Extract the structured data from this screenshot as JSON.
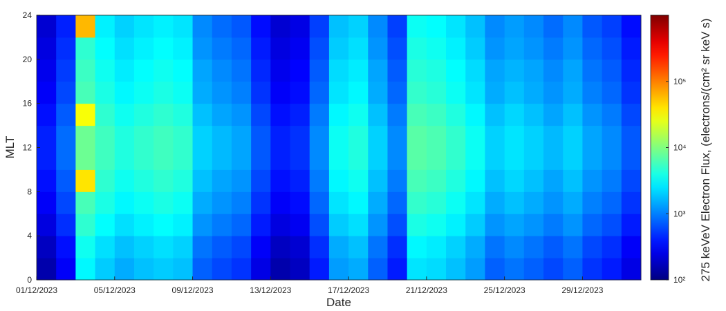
{
  "chart_data": {
    "type": "heatmap",
    "x": [
      "01/12/2023",
      "02/12/2023",
      "03/12/2023",
      "04/12/2023",
      "05/12/2023",
      "06/12/2023",
      "07/12/2023",
      "08/12/2023",
      "09/12/2023",
      "10/12/2023",
      "11/12/2023",
      "12/12/2023",
      "13/12/2023",
      "14/12/2023",
      "15/12/2023",
      "16/12/2023",
      "17/12/2023",
      "18/12/2023",
      "19/12/2023",
      "20/12/2023",
      "21/12/2023",
      "22/12/2023",
      "23/12/2023",
      "24/12/2023",
      "25/12/2023",
      "26/12/2023",
      "27/12/2023",
      "28/12/2023",
      "29/12/2023",
      "30/12/2023",
      "31/12/2023"
    ],
    "y_edges": [
      0,
      2,
      4,
      6,
      8,
      10,
      12,
      14,
      16,
      18,
      20,
      22,
      24
    ],
    "values": [
      [
        150,
        300,
        3000,
        2000,
        1500,
        1800,
        2000,
        1800,
        750,
        600,
        500,
        250,
        150,
        180,
        400,
        1300,
        1500,
        750,
        400,
        2500,
        2300,
        1800,
        1300,
        750,
        900,
        750,
        600,
        750,
        500,
        400,
        250
      ],
      [
        180,
        360,
        3600,
        2400,
        1800,
        2100,
        2400,
        2100,
        900,
        720,
        600,
        300,
        180,
        210,
        480,
        1500,
        1800,
        900,
        480,
        3000,
        2700,
        2100,
        1500,
        900,
        1100,
        900,
        720,
        900,
        600,
        480,
        300
      ],
      [
        240,
        480,
        4800,
        3200,
        2400,
        2800,
        3200,
        2800,
        1200,
        960,
        800,
        400,
        240,
        280,
        640,
        2000,
        2400,
        1200,
        640,
        4000,
        3600,
        2800,
        2000,
        1200,
        1400,
        1200,
        960,
        1200,
        800,
        640,
        400
      ],
      [
        300,
        600,
        6000,
        4000,
        3000,
        3500,
        4000,
        3500,
        1500,
        1200,
        1000,
        500,
        300,
        350,
        800,
        2500,
        3000,
        1500,
        800,
        5000,
        4500,
        3500,
        2500,
        1500,
        1800,
        1500,
        1200,
        1500,
        1000,
        800,
        500
      ],
      [
        360,
        720,
        40000,
        4800,
        3600,
        4200,
        4800,
        4200,
        1800,
        1400,
        1200,
        600,
        360,
        420,
        960,
        3000,
        3600,
        1800,
        960,
        6000,
        5400,
        4200,
        3000,
        1800,
        2200,
        1800,
        1400,
        1800,
        1200,
        960,
        600
      ],
      [
        420,
        840,
        8400,
        5600,
        4200,
        4900,
        5600,
        4900,
        2100,
        1700,
        1400,
        700,
        420,
        490,
        1100,
        3500,
        4200,
        2100,
        1100,
        7000,
        6300,
        4900,
        3500,
        2100,
        2500,
        2100,
        1700,
        2100,
        1400,
        1100,
        700
      ],
      [
        420,
        840,
        8400,
        5600,
        4200,
        4900,
        5600,
        4900,
        2100,
        1700,
        1400,
        700,
        420,
        490,
        1100,
        3500,
        4200,
        2100,
        1100,
        7000,
        6300,
        4900,
        3500,
        2100,
        2500,
        2100,
        1700,
        2100,
        1400,
        1100,
        700
      ],
      [
        360,
        720,
        30000,
        4800,
        3600,
        4200,
        4800,
        4200,
        1800,
        1400,
        1200,
        600,
        360,
        420,
        960,
        3000,
        3600,
        1800,
        960,
        6000,
        5400,
        4200,
        3000,
        1800,
        2200,
        1800,
        1400,
        1800,
        1200,
        960,
        600
      ],
      [
        300,
        600,
        6000,
        4000,
        3000,
        3500,
        4000,
        3500,
        1500,
        1200,
        1000,
        500,
        300,
        350,
        800,
        2500,
        3000,
        1500,
        800,
        5000,
        4500,
        3500,
        2500,
        1500,
        1800,
        1500,
        1200,
        1500,
        1000,
        800,
        500
      ],
      [
        270,
        540,
        5400,
        3600,
        2700,
        3200,
        3600,
        3200,
        1400,
        1100,
        900,
        450,
        270,
        320,
        720,
        2300,
        2700,
        1400,
        720,
        4500,
        4100,
        3200,
        2300,
        1400,
        1600,
        1400,
        1100,
        1400,
        900,
        720,
        450
      ],
      [
        240,
        480,
        4800,
        3200,
        2400,
        2800,
        3200,
        2800,
        1200,
        960,
        800,
        400,
        240,
        280,
        640,
        2000,
        2400,
        1200,
        640,
        4000,
        3600,
        2800,
        2000,
        1200,
        1400,
        1200,
        960,
        1200,
        800,
        640,
        400
      ],
      [
        210,
        420,
        60000,
        2800,
        2100,
        2500,
        2800,
        2500,
        1100,
        840,
        700,
        350,
        210,
        250,
        560,
        1800,
        2100,
        1100,
        560,
        3500,
        3200,
        2500,
        1800,
        1100,
        1300,
        1100,
        840,
        1100,
        700,
        560,
        350
      ]
    ],
    "xlabel": "Date",
    "ylabel": "MLT",
    "xticks": [
      "01/12/2023",
      "05/12/2023",
      "09/12/2023",
      "13/12/2023",
      "17/12/2023",
      "21/12/2023",
      "25/12/2023",
      "29/12/2023"
    ],
    "ylim": [
      0,
      24
    ],
    "yticks": [
      0,
      4,
      8,
      12,
      16,
      20,
      24
    ],
    "colormap": "jet",
    "colorbar": {
      "label": "275 keVeV Electron Flux, (electrons/(cm² sr keV s)",
      "log": true,
      "zlim": [
        100,
        1000000
      ],
      "zticks": [
        {
          "value": 100,
          "label": "10²"
        },
        {
          "value": 1000,
          "label": "10³"
        },
        {
          "value": 10000,
          "label": "10⁴"
        },
        {
          "value": 100000,
          "label": "10⁵"
        }
      ]
    }
  }
}
